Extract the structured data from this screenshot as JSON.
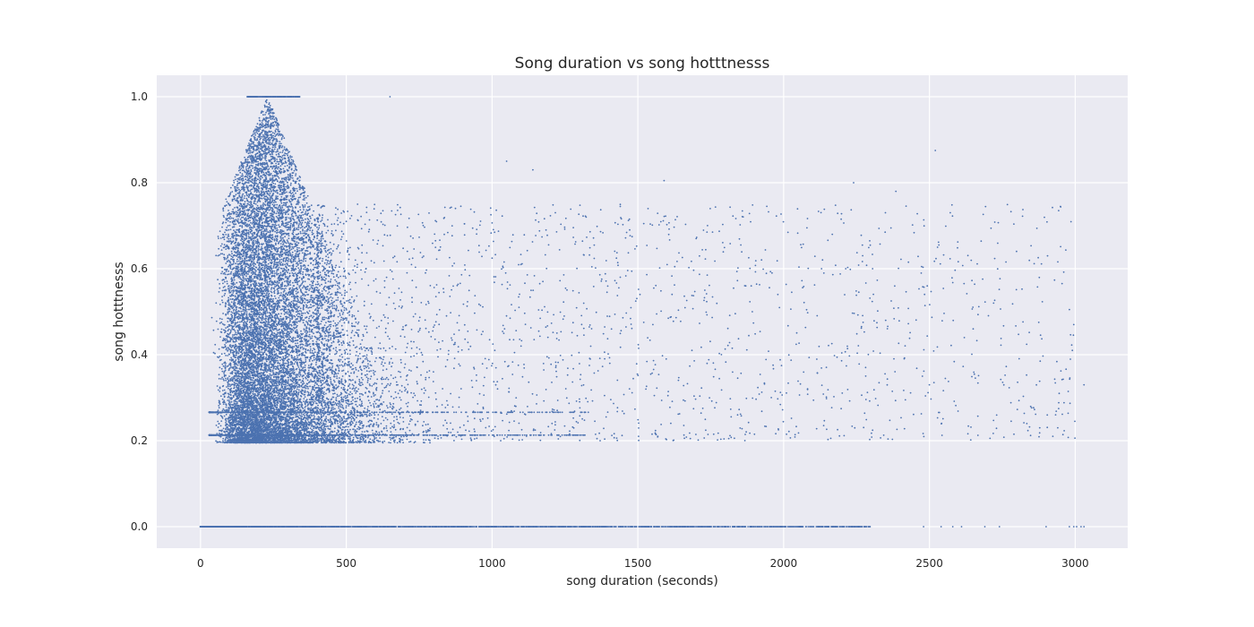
{
  "chart_data": {
    "type": "scatter",
    "title": "Song duration vs song hotttnesss",
    "xlabel": "song duration (seconds)",
    "ylabel": "song hotttnesss",
    "xlim": [
      -150,
      3180
    ],
    "ylim": [
      -0.05,
      1.05
    ],
    "x_ticks": [
      0,
      500,
      1000,
      1500,
      2000,
      2500,
      3000
    ],
    "x_tick_labels": [
      "0",
      "500",
      "1000",
      "1500",
      "2000",
      "2500",
      "3000"
    ],
    "y_ticks": [
      0.0,
      0.2,
      0.4,
      0.6,
      0.8,
      1.0
    ],
    "y_tick_labels": [
      "0.0",
      "0.2",
      "0.4",
      "0.6",
      "0.8",
      "1.0"
    ],
    "grid": true,
    "colors": {
      "background": "#eaeaf2",
      "grid": "#ffffff",
      "points": "#4c72b0"
    },
    "outliers": [
      [
        2520,
        0.875
      ],
      [
        2240,
        0.8
      ],
      [
        2385,
        0.78
      ],
      [
        1590,
        0.805
      ],
      [
        1140,
        0.83
      ],
      [
        1050,
        0.85
      ],
      [
        650,
        1.0
      ],
      [
        1700,
        0.67
      ],
      [
        2270,
        0.655
      ],
      [
        2080,
        0.695
      ],
      [
        2980,
        0.505
      ],
      [
        2995,
        0.47
      ],
      [
        3030,
        0.33
      ],
      [
        2990,
        0.41
      ],
      [
        2720,
        0.52
      ],
      [
        2880,
        0.385
      ],
      [
        2650,
        0.46
      ],
      [
        2350,
        0.48
      ],
      [
        2305,
        0.6
      ],
      [
        2130,
        0.6
      ],
      [
        1980,
        0.54
      ],
      [
        1870,
        0.56
      ],
      [
        2500,
        0.33
      ],
      [
        2945,
        0.31
      ],
      [
        2790,
        0.215
      ],
      [
        2010,
        0.215
      ],
      [
        1900,
        0.215
      ],
      [
        1760,
        0.215
      ],
      [
        1680,
        0.205
      ],
      [
        1215,
        0.225
      ]
    ],
    "zero_line_points": [
      2480,
      2540,
      2580,
      2610,
      2690,
      2740,
      2900,
      2980,
      2995,
      3005,
      3020,
      3030
    ]
  }
}
